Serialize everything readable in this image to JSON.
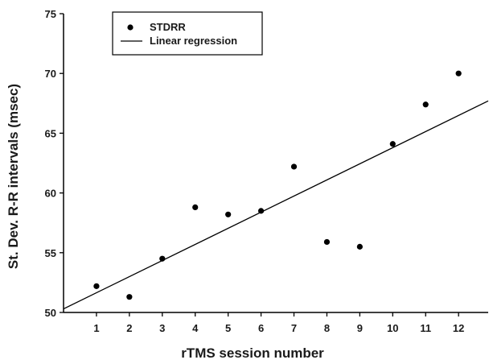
{
  "chart_data": {
    "type": "scatter",
    "title": "",
    "xlabel": "rTMS session number",
    "ylabel": "St. Dev. R-R intervals (msec)",
    "x_ticks": [
      1,
      2,
      3,
      4,
      5,
      6,
      7,
      8,
      9,
      10,
      11,
      12
    ],
    "y_ticks": [
      50,
      55,
      60,
      65,
      70,
      75
    ],
    "xlim": [
      0,
      12.9
    ],
    "ylim": [
      50,
      75
    ],
    "grid": false,
    "legend_position": "top-left",
    "series": [
      {
        "name": "STDRR",
        "kind": "scatter",
        "color": "#000000",
        "x": [
          1,
          2,
          3,
          4,
          5,
          6,
          7,
          8,
          9,
          10,
          11,
          12
        ],
        "y": [
          52.2,
          51.3,
          54.5,
          58.8,
          58.2,
          58.5,
          62.2,
          55.9,
          55.5,
          64.1,
          67.4,
          70.0
        ]
      },
      {
        "name": "Linear regression",
        "kind": "line",
        "color": "#000000",
        "x": [
          0,
          12.9
        ],
        "y": [
          50.3,
          67.7
        ]
      }
    ]
  }
}
